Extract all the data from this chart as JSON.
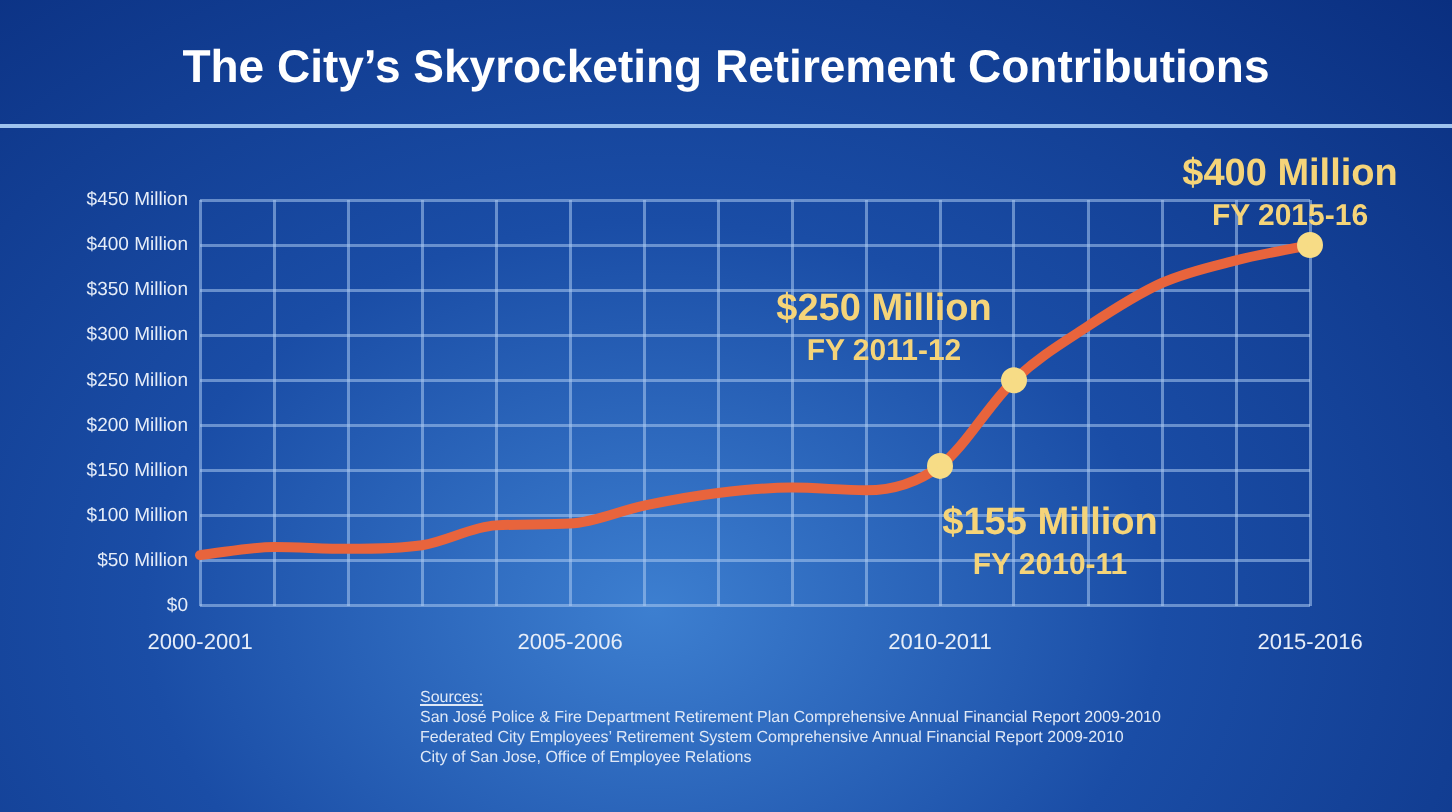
{
  "chart_data": {
    "type": "line",
    "title": "The City’s Skyrocketing Retirement Contributions",
    "categories": [
      "2000-2001",
      null,
      null,
      null,
      null,
      "2005-2006",
      null,
      null,
      null,
      null,
      "2010-2011",
      null,
      null,
      null,
      null,
      "2015-2016"
    ],
    "series": [
      {
        "color": "#e8643c",
        "values": [
          56,
          65,
          63,
          67,
          89,
          91,
          111,
          125,
          131,
          128,
          155,
          250,
          310,
          358,
          383,
          400
        ],
        "value_labels": [
          null,
          null,
          null,
          null,
          null,
          null,
          null,
          null,
          null,
          null,
          "$155 Million\nFY 2010-11",
          "$250 Million\nFY 2011-12",
          null,
          null,
          null,
          "$400 Million\nFY 2015-16"
        ]
      }
    ],
    "ylim": [
      0,
      450
    ],
    "yticks": [
      {
        "value": 0,
        "label": "$0"
      },
      {
        "value": 50,
        "label": "$50 Million"
      },
      {
        "value": 100,
        "label": "$100 Million"
      },
      {
        "value": 150,
        "label": "$150 Million"
      },
      {
        "value": 200,
        "label": "$200 Million"
      },
      {
        "value": 250,
        "label": "$250 Million"
      },
      {
        "value": 300,
        "label": "$300 Million"
      },
      {
        "value": 350,
        "label": "$350 Million"
      },
      {
        "value": 400,
        "label": "$400 Million"
      },
      {
        "value": 450,
        "label": "$450 Million"
      }
    ],
    "grid": true,
    "line_style": "solid",
    "annotations": [
      "Sources:",
      "San José Police & Fire Department Retirement Plan Comprehensive Annual Financial Report 2009-2010",
      "Federated City Employees’ Retirement System Comprehensive Annual Financial Report 2009-2010",
      "City of San Jose, Office of Employee Relations"
    ]
  }
}
